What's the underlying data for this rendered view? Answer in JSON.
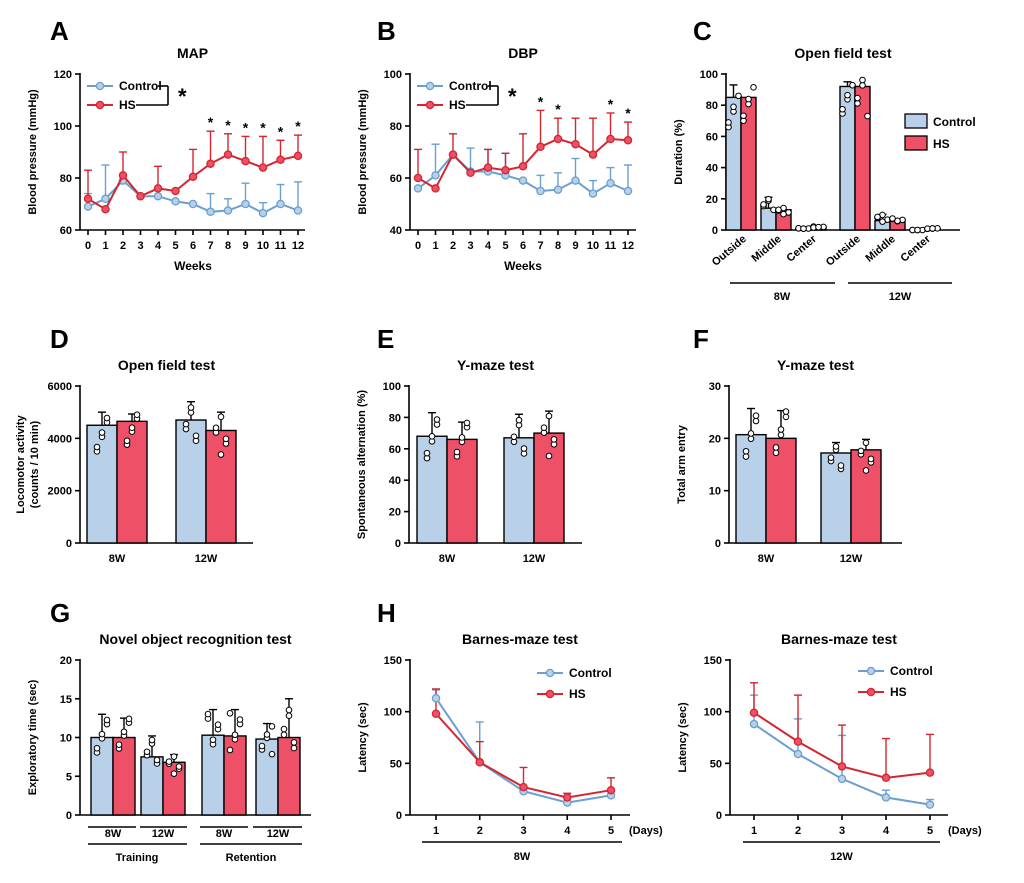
{
  "panel_letters": [
    "A",
    "B",
    "C",
    "D",
    "E",
    "F",
    "G",
    "H"
  ],
  "colors": {
    "control": "#b8d0e8",
    "hs": "#ee5068",
    "control_line": "#6b9fd0",
    "hs_line": "#d32630",
    "edge": "#000000"
  },
  "chart_data": [
    {
      "id": "A",
      "type": "line",
      "title": "MAP",
      "xlabel": "Weeks",
      "ylabel": "Blood pressure (mmHg)",
      "x": [
        0,
        1,
        2,
        3,
        4,
        5,
        6,
        7,
        8,
        9,
        10,
        11,
        12
      ],
      "ylim": [
        60,
        120
      ],
      "yticks": [
        60,
        80,
        100,
        120
      ],
      "series": [
        {
          "name": "Control",
          "values": [
            69,
            72,
            79,
            73,
            73,
            71,
            70,
            67,
            67.5,
            70,
            66.5,
            70,
            67.5
          ],
          "err": [
            5,
            13,
            0,
            0,
            0,
            0,
            0,
            7,
            4.5,
            8,
            4,
            7.5,
            11
          ]
        },
        {
          "name": "HS",
          "values": [
            72,
            68,
            81,
            73,
            76,
            75,
            80.5,
            85.5,
            89,
            86.5,
            84,
            87,
            88.5
          ],
          "err": [
            11,
            0,
            9,
            0,
            8.5,
            0,
            10.5,
            12.5,
            8,
            9.5,
            12,
            7.5,
            8
          ]
        }
      ],
      "significance": [
        "*",
        "*",
        "*",
        "*",
        "*",
        "*"
      ],
      "sig_x": [
        7,
        8,
        9,
        10,
        11,
        12
      ],
      "legend_star": "*"
    },
    {
      "id": "B",
      "type": "line",
      "title": "DBP",
      "xlabel": "Weeks",
      "ylabel": "Blood pressure (mmHg)",
      "x": [
        0,
        1,
        2,
        3,
        4,
        5,
        6,
        7,
        8,
        9,
        10,
        11,
        12
      ],
      "ylim": [
        40,
        100
      ],
      "yticks": [
        40,
        60,
        80,
        100
      ],
      "series": [
        {
          "name": "Control",
          "values": [
            56,
            61,
            69,
            62.5,
            62.5,
            61,
            59,
            55,
            55.5,
            59,
            54,
            58,
            55
          ],
          "err": [
            0,
            12,
            0,
            9,
            8.5,
            8.5,
            0,
            6,
            6.5,
            8.5,
            5,
            6,
            10
          ]
        },
        {
          "name": "HS",
          "values": [
            60,
            56,
            69,
            62,
            64,
            63,
            64.5,
            72,
            75,
            73,
            69,
            75,
            74.5
          ],
          "err": [
            11,
            0,
            8,
            0,
            7,
            6.5,
            12.5,
            14,
            8,
            10,
            14,
            10,
            7
          ]
        }
      ],
      "significance": [
        "*",
        "*",
        "*",
        "*"
      ],
      "sig_x": [
        7,
        8,
        11,
        12
      ],
      "legend_star": "*"
    },
    {
      "id": "C",
      "type": "bar",
      "title": "Open field test",
      "ylabel": "Duration (%)",
      "ylim": [
        0,
        100
      ],
      "yticks": [
        0,
        20,
        40,
        60,
        80,
        100
      ],
      "categories": [
        "Outside",
        "Middle",
        "Center",
        "Outside",
        "Middle",
        "Center"
      ],
      "groups": [
        "8W",
        "12W"
      ],
      "series": [
        {
          "name": "Control",
          "values": [
            85,
            14,
            1,
            92,
            6,
            0
          ],
          "err": [
            8,
            7,
            0,
            3,
            4,
            0
          ]
        },
        {
          "name": "HS",
          "values": [
            85,
            13,
            2,
            92,
            7,
            1
          ],
          "err": [
            0,
            0,
            0,
            0,
            0,
            0
          ]
        }
      ]
    },
    {
      "id": "D",
      "type": "bar",
      "title": "Open field test",
      "ylabel": [
        "Locomotor activity",
        "(counts / 10 min)"
      ],
      "ylim": [
        0,
        6000
      ],
      "yticks": [
        0,
        2000,
        4000,
        6000
      ],
      "categories": [
        "8W",
        "12W"
      ],
      "series": [
        {
          "name": "Control",
          "values": [
            4500,
            4700
          ],
          "err": [
            500,
            700
          ]
        },
        {
          "name": "HS",
          "values": [
            4650,
            4300
          ],
          "err": [
            280,
            700
          ]
        }
      ]
    },
    {
      "id": "E",
      "type": "bar",
      "title": "Y-maze test",
      "ylabel": "Spontaneous alternation (%)",
      "ylim": [
        0,
        100
      ],
      "yticks": [
        0,
        20,
        40,
        60,
        80,
        100
      ],
      "categories": [
        "8W",
        "12W"
      ],
      "series": [
        {
          "name": "Control",
          "values": [
            68,
            67
          ],
          "err": [
            15,
            15
          ]
        },
        {
          "name": "HS",
          "values": [
            66,
            70
          ],
          "err": [
            11,
            14
          ]
        }
      ]
    },
    {
      "id": "F",
      "type": "bar",
      "title": "Y-maze test",
      "ylabel": "Total arm entry",
      "ylim": [
        0,
        30
      ],
      "yticks": [
        0,
        10,
        20,
        30
      ],
      "categories": [
        "8W",
        "12W"
      ],
      "series": [
        {
          "name": "Control",
          "values": [
            20.7,
            17.2
          ],
          "err": [
            5,
            2
          ]
        },
        {
          "name": "HS",
          "values": [
            20,
            17.8
          ],
          "err": [
            5.3,
            2
          ]
        }
      ]
    },
    {
      "id": "G",
      "type": "bar",
      "title": "Novel object recognition test",
      "ylabel": "Exploratory time (sec)",
      "ylim": [
        0,
        20
      ],
      "yticks": [
        0,
        5,
        10,
        15,
        20
      ],
      "categories": [
        "8W",
        "12W",
        "8W",
        "12W"
      ],
      "groups": [
        "Training",
        "Retention"
      ],
      "series": [
        {
          "name": "Control",
          "values": [
            10,
            7.5,
            10.3,
            9.8
          ],
          "err": [
            3,
            2.7,
            3.3,
            2
          ]
        },
        {
          "name": "HS",
          "values": [
            10,
            6.8,
            10.2,
            10
          ],
          "err": [
            2.5,
            1,
            3.4,
            5
          ]
        }
      ]
    },
    {
      "id": "H1",
      "type": "line",
      "title": "Barnes-maze test",
      "ylabel": "Latency (sec)",
      "x_unit": "(Days)",
      "group": "8W",
      "x": [
        1,
        2,
        3,
        4,
        5
      ],
      "ylim": [
        0,
        150
      ],
      "yticks": [
        0,
        50,
        100,
        150
      ],
      "series": [
        {
          "name": "Control",
          "values": [
            113,
            51,
            23,
            12,
            19
          ],
          "err": [
            8,
            39,
            0,
            0,
            0
          ]
        },
        {
          "name": "HS",
          "values": [
            98,
            51,
            27,
            17,
            24
          ],
          "err": [
            24,
            20,
            19,
            4,
            12
          ]
        }
      ]
    },
    {
      "id": "H2",
      "type": "line",
      "title": "Barnes-maze test",
      "ylabel": "Latency (sec)",
      "x_unit": "(Days)",
      "group": "12W",
      "x": [
        1,
        2,
        3,
        4,
        5
      ],
      "ylim": [
        0,
        150
      ],
      "yticks": [
        0,
        50,
        100,
        150
      ],
      "series": [
        {
          "name": "Control",
          "values": [
            88,
            59,
            35,
            17,
            10
          ],
          "err": [
            28,
            34,
            42,
            7,
            5
          ]
        },
        {
          "name": "HS",
          "values": [
            99,
            71,
            47,
            36,
            41
          ],
          "err": [
            29,
            45,
            40,
            38,
            37
          ]
        }
      ]
    }
  ]
}
